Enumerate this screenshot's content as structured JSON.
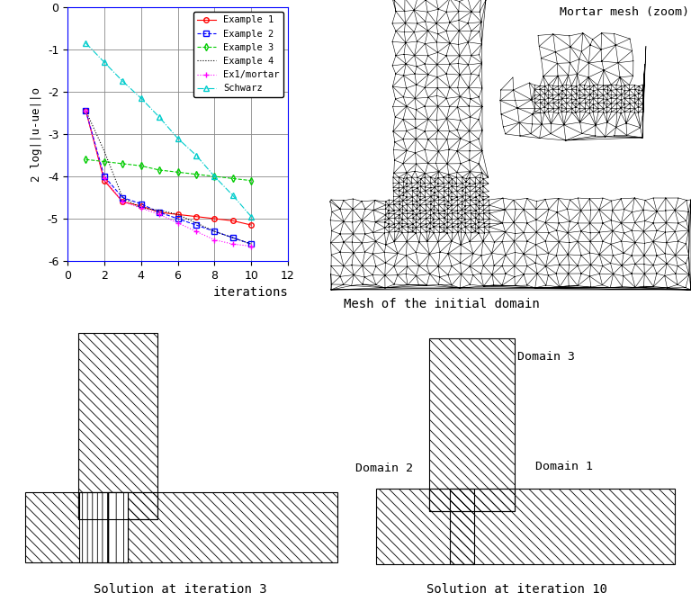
{
  "chart_data": {
    "type": "line",
    "xlabel": "iterations",
    "ylabel": "2 log||u-ue||o",
    "x": [
      1,
      2,
      3,
      4,
      5,
      6,
      7,
      8,
      9,
      10
    ],
    "xlim": [
      0,
      12
    ],
    "xticks": [
      0,
      2,
      4,
      6,
      8,
      10,
      12
    ],
    "ylim": [
      -6,
      0
    ],
    "yticks": [
      -6,
      -5,
      -4,
      -3,
      -2,
      -1,
      0
    ],
    "grid": true,
    "legend": "upper right",
    "series": [
      {
        "name": "Example 1",
        "color": "#ff0000",
        "marker": "o",
        "line_style": "solid",
        "values": [
          -2.45,
          -4.1,
          -4.6,
          -4.7,
          -4.85,
          -4.9,
          -4.95,
          -5.0,
          -5.05,
          -5.15
        ]
      },
      {
        "name": "Example 2",
        "color": "#0000ff",
        "marker": "s",
        "line_style": "dashed",
        "values": [
          -2.45,
          -4.0,
          -4.5,
          -4.65,
          -4.85,
          -5.0,
          -5.15,
          -5.3,
          -5.45,
          -5.6
        ]
      },
      {
        "name": "Example 3",
        "color": "#00cc00",
        "marker": "d",
        "line_style": "dashed",
        "values": [
          -3.6,
          -3.65,
          -3.7,
          -3.75,
          -3.85,
          -3.9,
          -3.95,
          -4.0,
          -4.05,
          -4.1
        ]
      },
      {
        "name": "Example 4",
        "color": "#000000",
        "marker": "none",
        "line_style": "dotted",
        "values": [
          -2.45,
          -3.4,
          -4.5,
          -4.75,
          -4.8,
          -4.9,
          -5.1,
          -5.3,
          -5.45,
          -5.6
        ]
      },
      {
        "name": "Ex1/mortar",
        "color": "#ff00ff",
        "marker": "+",
        "line_style": "dotted",
        "values": [
          -2.45,
          -4.05,
          -4.6,
          -4.75,
          -4.9,
          -5.1,
          -5.3,
          -5.5,
          -5.6,
          -5.65
        ]
      },
      {
        "name": "Schwarz",
        "color": "#00cccc",
        "marker": "^",
        "line_style": "dashdot",
        "values": [
          -0.85,
          -1.3,
          -1.75,
          -2.15,
          -2.6,
          -3.1,
          -3.5,
          -4.0,
          -4.45,
          -4.95
        ]
      }
    ]
  },
  "mesh": {
    "caption": "Mesh of the initial domain",
    "zoom_label": "Mortar mesh (zoom)"
  },
  "solutions": [
    {
      "caption": "Solution at iteration 3"
    },
    {
      "caption": "Solution at iteration 10",
      "domain_labels": [
        "Domain 1",
        "Domain 2",
        "Domain 3"
      ]
    }
  ]
}
